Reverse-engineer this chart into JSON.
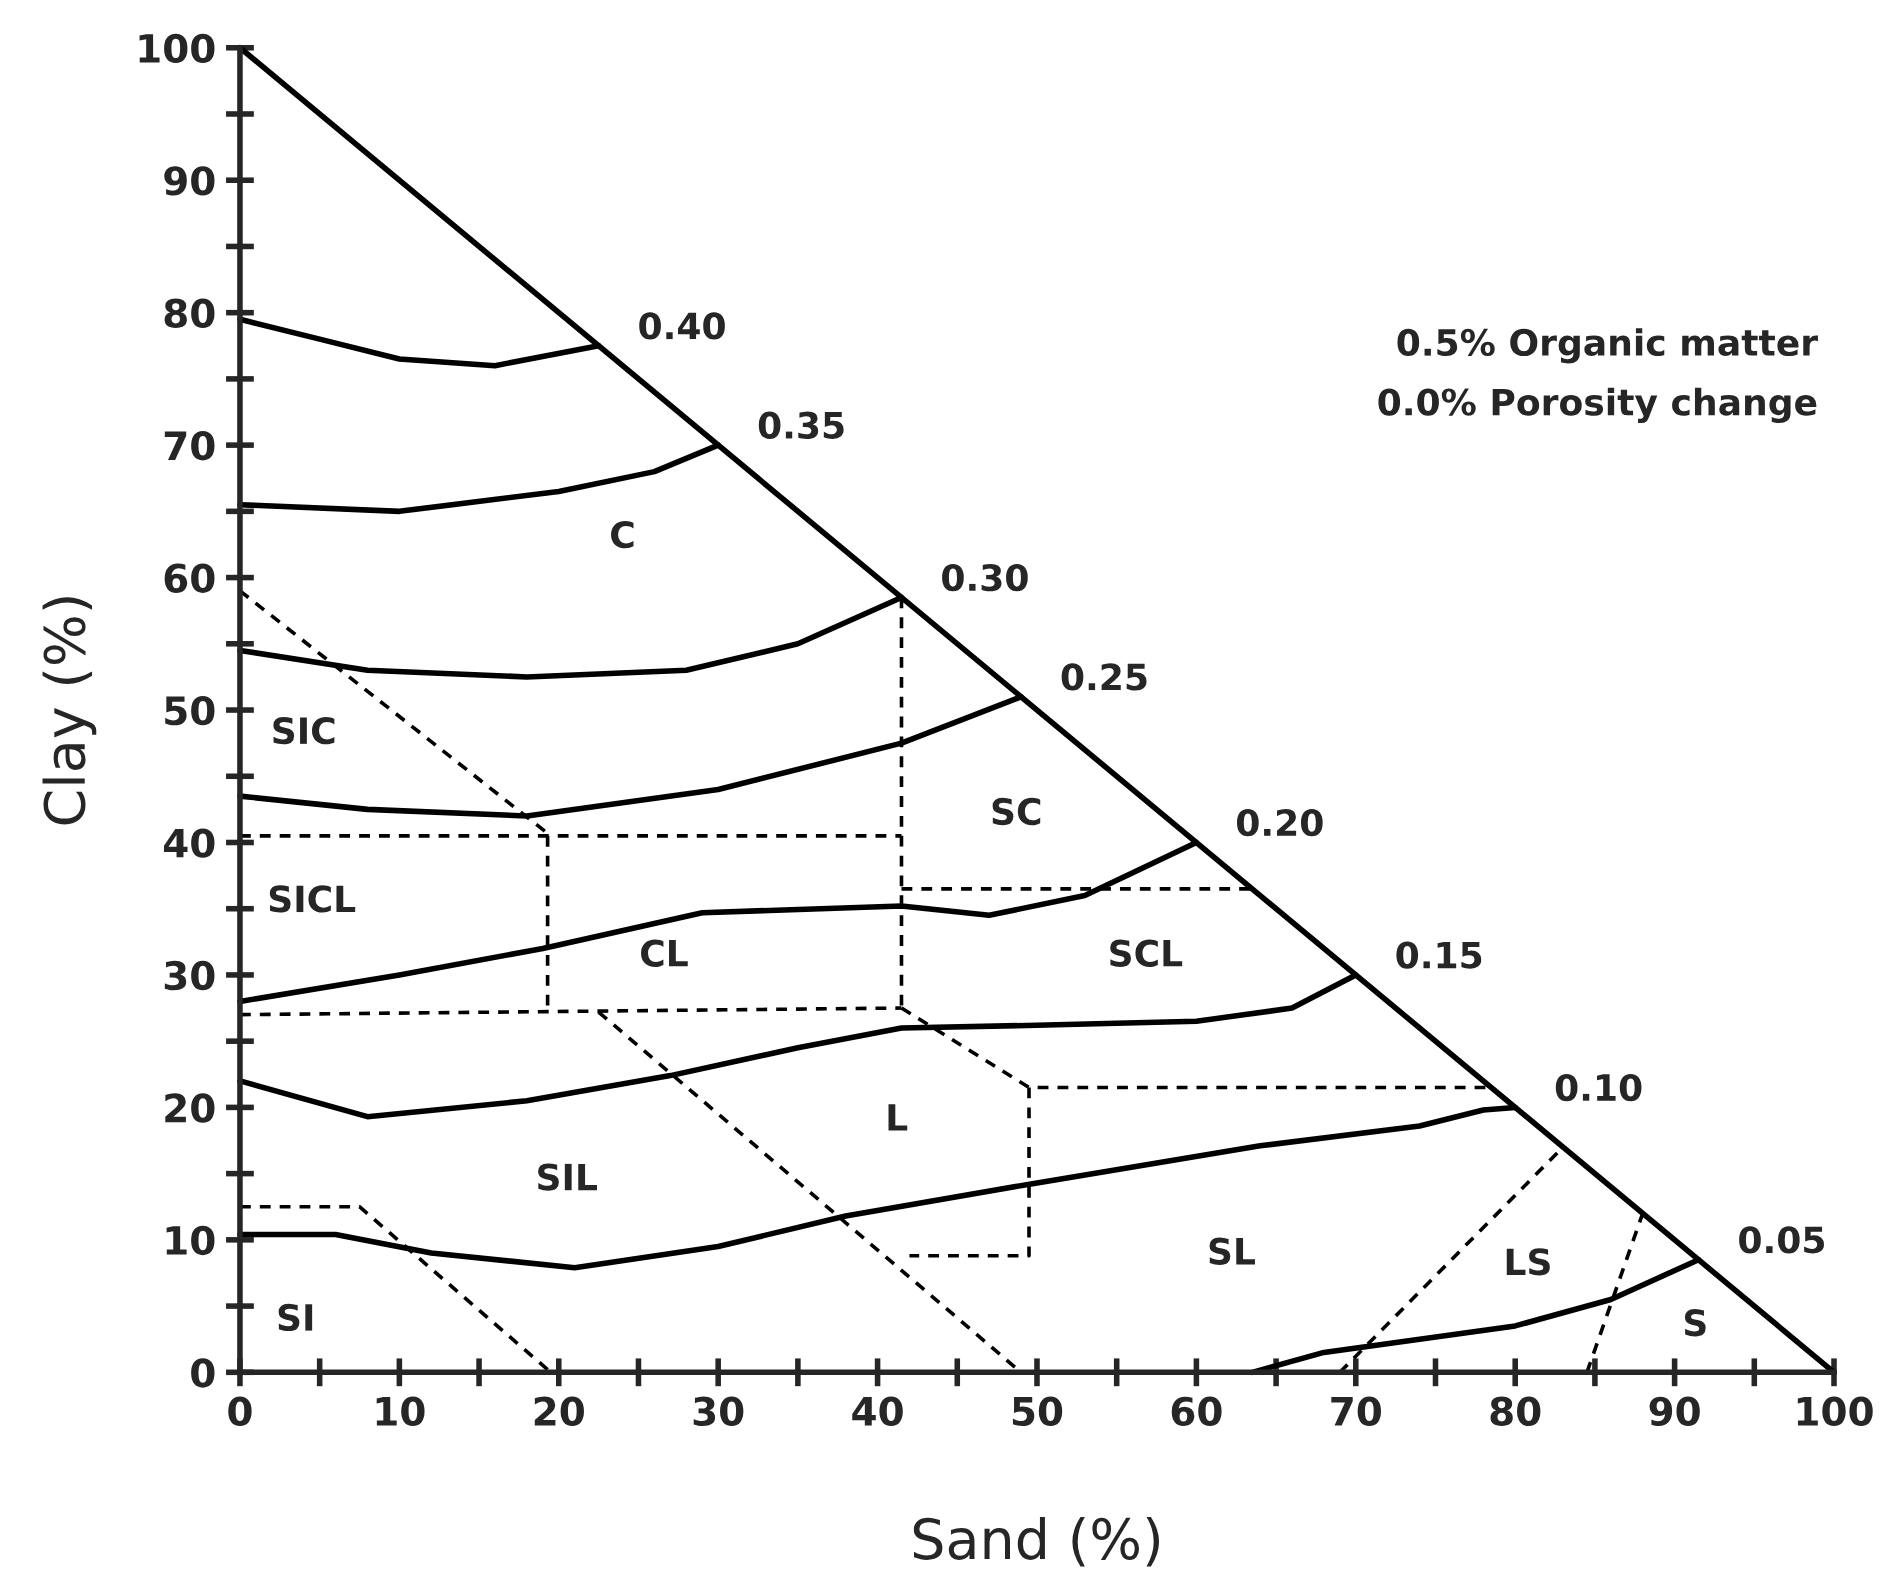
{
  "chart_data": {
    "type": "line",
    "xlabel": "Sand (%)",
    "ylabel": "Clay (%)",
    "xlim": [
      0,
      100
    ],
    "ylim": [
      0,
      100
    ],
    "xticks": [
      0,
      {
        "value": 5,
        "label": null
      },
      10,
      {
        "value": 15,
        "label": null
      },
      20,
      {
        "value": 25,
        "label": null
      },
      30,
      {
        "value": 35,
        "label": null
      },
      40,
      {
        "value": 45,
        "label": null
      },
      50,
      {
        "value": 55,
        "label": null
      },
      60,
      {
        "value": 65,
        "label": null
      },
      70,
      {
        "value": 75,
        "label": null
      },
      80,
      {
        "value": 85,
        "label": null
      },
      90,
      {
        "value": 95,
        "label": null
      },
      100
    ],
    "yticks": [
      0,
      {
        "value": 5,
        "label": null
      },
      10,
      {
        "value": 15,
        "label": null
      },
      20,
      {
        "value": 25,
        "label": null
      },
      30,
      {
        "value": 35,
        "label": null
      },
      40,
      {
        "value": 45,
        "label": null
      },
      50,
      {
        "value": 55,
        "label": null
      },
      60,
      {
        "value": 65,
        "label": null
      },
      70,
      {
        "value": 75,
        "label": null
      },
      80,
      {
        "value": 85,
        "label": null
      },
      90,
      {
        "value": 95,
        "label": null
      },
      100
    ],
    "grid": false,
    "legend": false,
    "series": [
      {
        "color": "#000000",
        "line_style": "solid",
        "x": [
          0,
          100
        ],
        "values": [
          100,
          0
        ]
      },
      {
        "color": "#000000",
        "line_style": "solid",
        "x": [
          0,
          5,
          10,
          16,
          22.5
        ],
        "values": [
          79.5,
          78,
          76.5,
          76,
          77.5
        ]
      },
      {
        "color": "#000000",
        "line_style": "solid",
        "x": [
          0,
          10,
          20,
          26,
          30
        ],
        "values": [
          65.5,
          65,
          66.5,
          68,
          70
        ]
      },
      {
        "color": "#000000",
        "line_style": "solid",
        "x": [
          0,
          8,
          18,
          28,
          35,
          41.5
        ],
        "values": [
          54.5,
          53,
          52.5,
          53,
          55,
          58.5
        ]
      },
      {
        "color": "#000000",
        "line_style": "solid",
        "x": [
          0,
          8,
          18,
          30,
          41.5,
          49
        ],
        "values": [
          43.5,
          42.5,
          42,
          44,
          47.5,
          51
        ]
      },
      {
        "color": "#000000",
        "line_style": "solid",
        "x": [
          0,
          10,
          19,
          29,
          41.5,
          47,
          53,
          60
        ],
        "values": [
          28,
          30,
          32,
          34.7,
          35.2,
          34.5,
          36,
          40
        ]
      },
      {
        "color": "#000000",
        "line_style": "solid",
        "x": [
          0,
          8,
          18,
          27,
          35,
          41.5,
          50,
          60,
          66,
          70
        ],
        "values": [
          22,
          19.3,
          20.5,
          22.4,
          24.5,
          26,
          26.2,
          26.5,
          27.5,
          30
        ]
      },
      {
        "color": "#000000",
        "line_style": "solid",
        "x": [
          0,
          6,
          12,
          21,
          30,
          38,
          50,
          64,
          74,
          78,
          80
        ],
        "values": [
          10.4,
          10.4,
          9,
          7.9,
          9.5,
          11.8,
          14.3,
          17.1,
          18.6,
          19.8,
          20
        ]
      },
      {
        "color": "#000000",
        "line_style": "solid",
        "x": [
          63.5,
          68,
          80,
          86,
          91.5
        ],
        "values": [
          0,
          1.5,
          3.5,
          5.5,
          8.5
        ]
      },
      {
        "color": "#000000",
        "line_style": "dashed",
        "x": [
          0,
          19.5
        ],
        "values": [
          59,
          40.5
        ]
      },
      {
        "color": "#000000",
        "line_style": "dashed",
        "x": [
          0,
          41.5
        ],
        "values": [
          40.5,
          40.5
        ]
      },
      {
        "color": "#000000",
        "line_style": "dashed",
        "x": [
          19.3,
          19.3
        ],
        "values": [
          40.5,
          27.2
        ]
      },
      {
        "color": "#000000",
        "line_style": "dashed",
        "x": [
          41.5,
          41.5
        ],
        "values": [
          58.5,
          27.5
        ]
      },
      {
        "color": "#000000",
        "line_style": "dashed",
        "x": [
          41.5,
          63.5
        ],
        "values": [
          36.5,
          36.5
        ]
      },
      {
        "color": "#000000",
        "line_style": "dashed",
        "x": [
          0,
          41.5
        ],
        "values": [
          27,
          27.5
        ]
      },
      {
        "color": "#000000",
        "line_style": "dashed",
        "x": [
          22.5,
          49
        ],
        "values": [
          27.2,
          0
        ]
      },
      {
        "color": "#000000",
        "line_style": "dashed",
        "x": [
          41.5,
          49.5,
          78.5
        ],
        "values": [
          27.5,
          21.5,
          21.5
        ]
      },
      {
        "color": "#000000",
        "line_style": "dashed",
        "x": [
          49.5,
          49.5,
          42
        ],
        "values": [
          21.5,
          8.8,
          8.8
        ]
      },
      {
        "color": "#000000",
        "line_style": "dashed",
        "x": [
          0,
          7.5,
          19.5
        ],
        "values": [
          12.5,
          12.5,
          0
        ]
      },
      {
        "color": "#000000",
        "line_style": "dashed",
        "x": [
          69,
          83
        ],
        "values": [
          0,
          17
        ]
      },
      {
        "color": "#000000",
        "line_style": "dashed",
        "x": [
          84.5,
          88
        ],
        "values": [
          0,
          12
        ]
      }
    ],
    "annotations": [
      "0.5% Organic matter",
      "0.0% Porosity change",
      {
        "text": "0.40",
        "x": 22.5,
        "y": 77.5
      },
      {
        "text": "0.35",
        "x": 30,
        "y": 70
      },
      {
        "text": "0.30",
        "x": 41.5,
        "y": 58.5
      },
      {
        "text": "0.25",
        "x": 49,
        "y": 51
      },
      {
        "text": "0.20",
        "x": 60,
        "y": 40
      },
      {
        "text": "0.15",
        "x": 70,
        "y": 30
      },
      {
        "text": "0.10",
        "x": 80,
        "y": 20
      },
      {
        "text": "0.05",
        "x": 91.5,
        "y": 8.5
      },
      "C",
      "SIC",
      "SICL",
      "CL",
      "SC",
      "SCL",
      "L",
      "SIL",
      "SI",
      "SL",
      "LS",
      "S"
    ]
  }
}
